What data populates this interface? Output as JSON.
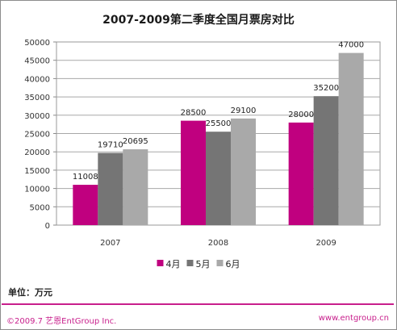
{
  "title": "2007-2009第二季度全国月票房对比",
  "unit_label": "单位：万元",
  "footer": {
    "copyright": "©2009.7 艺恩EntGroup Inc.",
    "website": "www.entgroup.cn"
  },
  "colors": {
    "accent": "#c81f8c",
    "april": "#c0007f",
    "may": "#757575",
    "june": "#a9a9a9"
  },
  "chart_data": {
    "type": "bar",
    "title": "2007-2009第二季度全国月票房对比",
    "categories": [
      "2007",
      "2008",
      "2009"
    ],
    "series": [
      {
        "name": "4月",
        "values": [
          11008,
          28500,
          28000
        ],
        "color": "#c0007f"
      },
      {
        "name": "5月",
        "values": [
          19710,
          25500,
          35200
        ],
        "color": "#757575"
      },
      {
        "name": "6月",
        "values": [
          20695,
          29100,
          47000
        ],
        "color": "#a9a9a9"
      }
    ],
    "ylim": [
      0,
      50000
    ],
    "yticks": [
      0,
      5000,
      10000,
      15000,
      20000,
      25000,
      30000,
      35000,
      40000,
      45000,
      50000
    ],
    "grid": true,
    "legend": "bottom",
    "data_labels": true
  }
}
